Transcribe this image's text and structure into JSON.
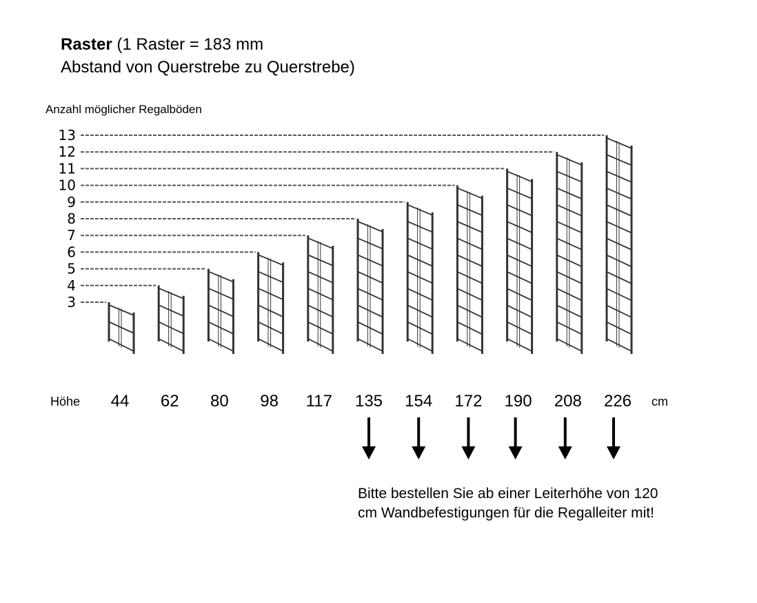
{
  "title": {
    "bold": "Raster",
    "rest_line1": " (1 Raster = 183 mm",
    "line2": "Abstand von Querstrebe zu Querstrebe)"
  },
  "y_label": "Anzahl möglicher Regalböden",
  "height_label": "Höhe",
  "height_unit": "cm",
  "note": "Bitte bestellen Sie ab einer Leiterhöhe von 120 cm Wandbefestigungen für die Regalleiter mit!",
  "ladders": [
    {
      "shelves": 3,
      "height_cm": 44,
      "arrow": false
    },
    {
      "shelves": 4,
      "height_cm": 62,
      "arrow": false
    },
    {
      "shelves": 5,
      "height_cm": 80,
      "arrow": false
    },
    {
      "shelves": 6,
      "height_cm": 98,
      "arrow": false
    },
    {
      "shelves": 7,
      "height_cm": 117,
      "arrow": false
    },
    {
      "shelves": 8,
      "height_cm": 135,
      "arrow": true
    },
    {
      "shelves": 9,
      "height_cm": 154,
      "arrow": true
    },
    {
      "shelves": 10,
      "height_cm": 172,
      "arrow": true
    },
    {
      "shelves": 11,
      "height_cm": 190,
      "arrow": true
    },
    {
      "shelves": 12,
      "height_cm": 208,
      "arrow": true
    },
    {
      "shelves": 13,
      "height_cm": 226,
      "arrow": true
    }
  ],
  "colors": {
    "ladder": "#333333",
    "dash": "#555555",
    "text": "#000000"
  }
}
